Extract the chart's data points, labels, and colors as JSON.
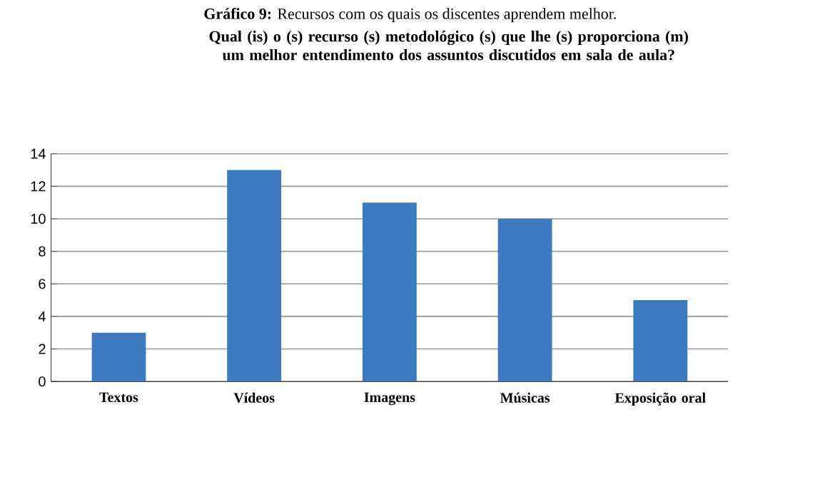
{
  "chart_data": {
    "type": "bar",
    "title": "Qual (is) o (s) recurso (s) metodológico (s) que lhe (s) proporciona (m) um melhor entendimento dos assuntos discutidos em sala de aula?",
    "annotations": [
      "**Gráfico 9:** Recursos com os quais os discentes aprendem melhor."
    ],
    "categories": [
      "Textos",
      "Vídeos",
      "Imagens",
      "Músicas",
      "Exposição oral"
    ],
    "values": [
      3,
      13,
      11,
      10,
      5
    ],
    "color": "#3d7abf",
    "ylim": [
      0,
      14
    ],
    "yticks": [
      0,
      2,
      4,
      6,
      8,
      10,
      12,
      14
    ],
    "grid": "y"
  }
}
